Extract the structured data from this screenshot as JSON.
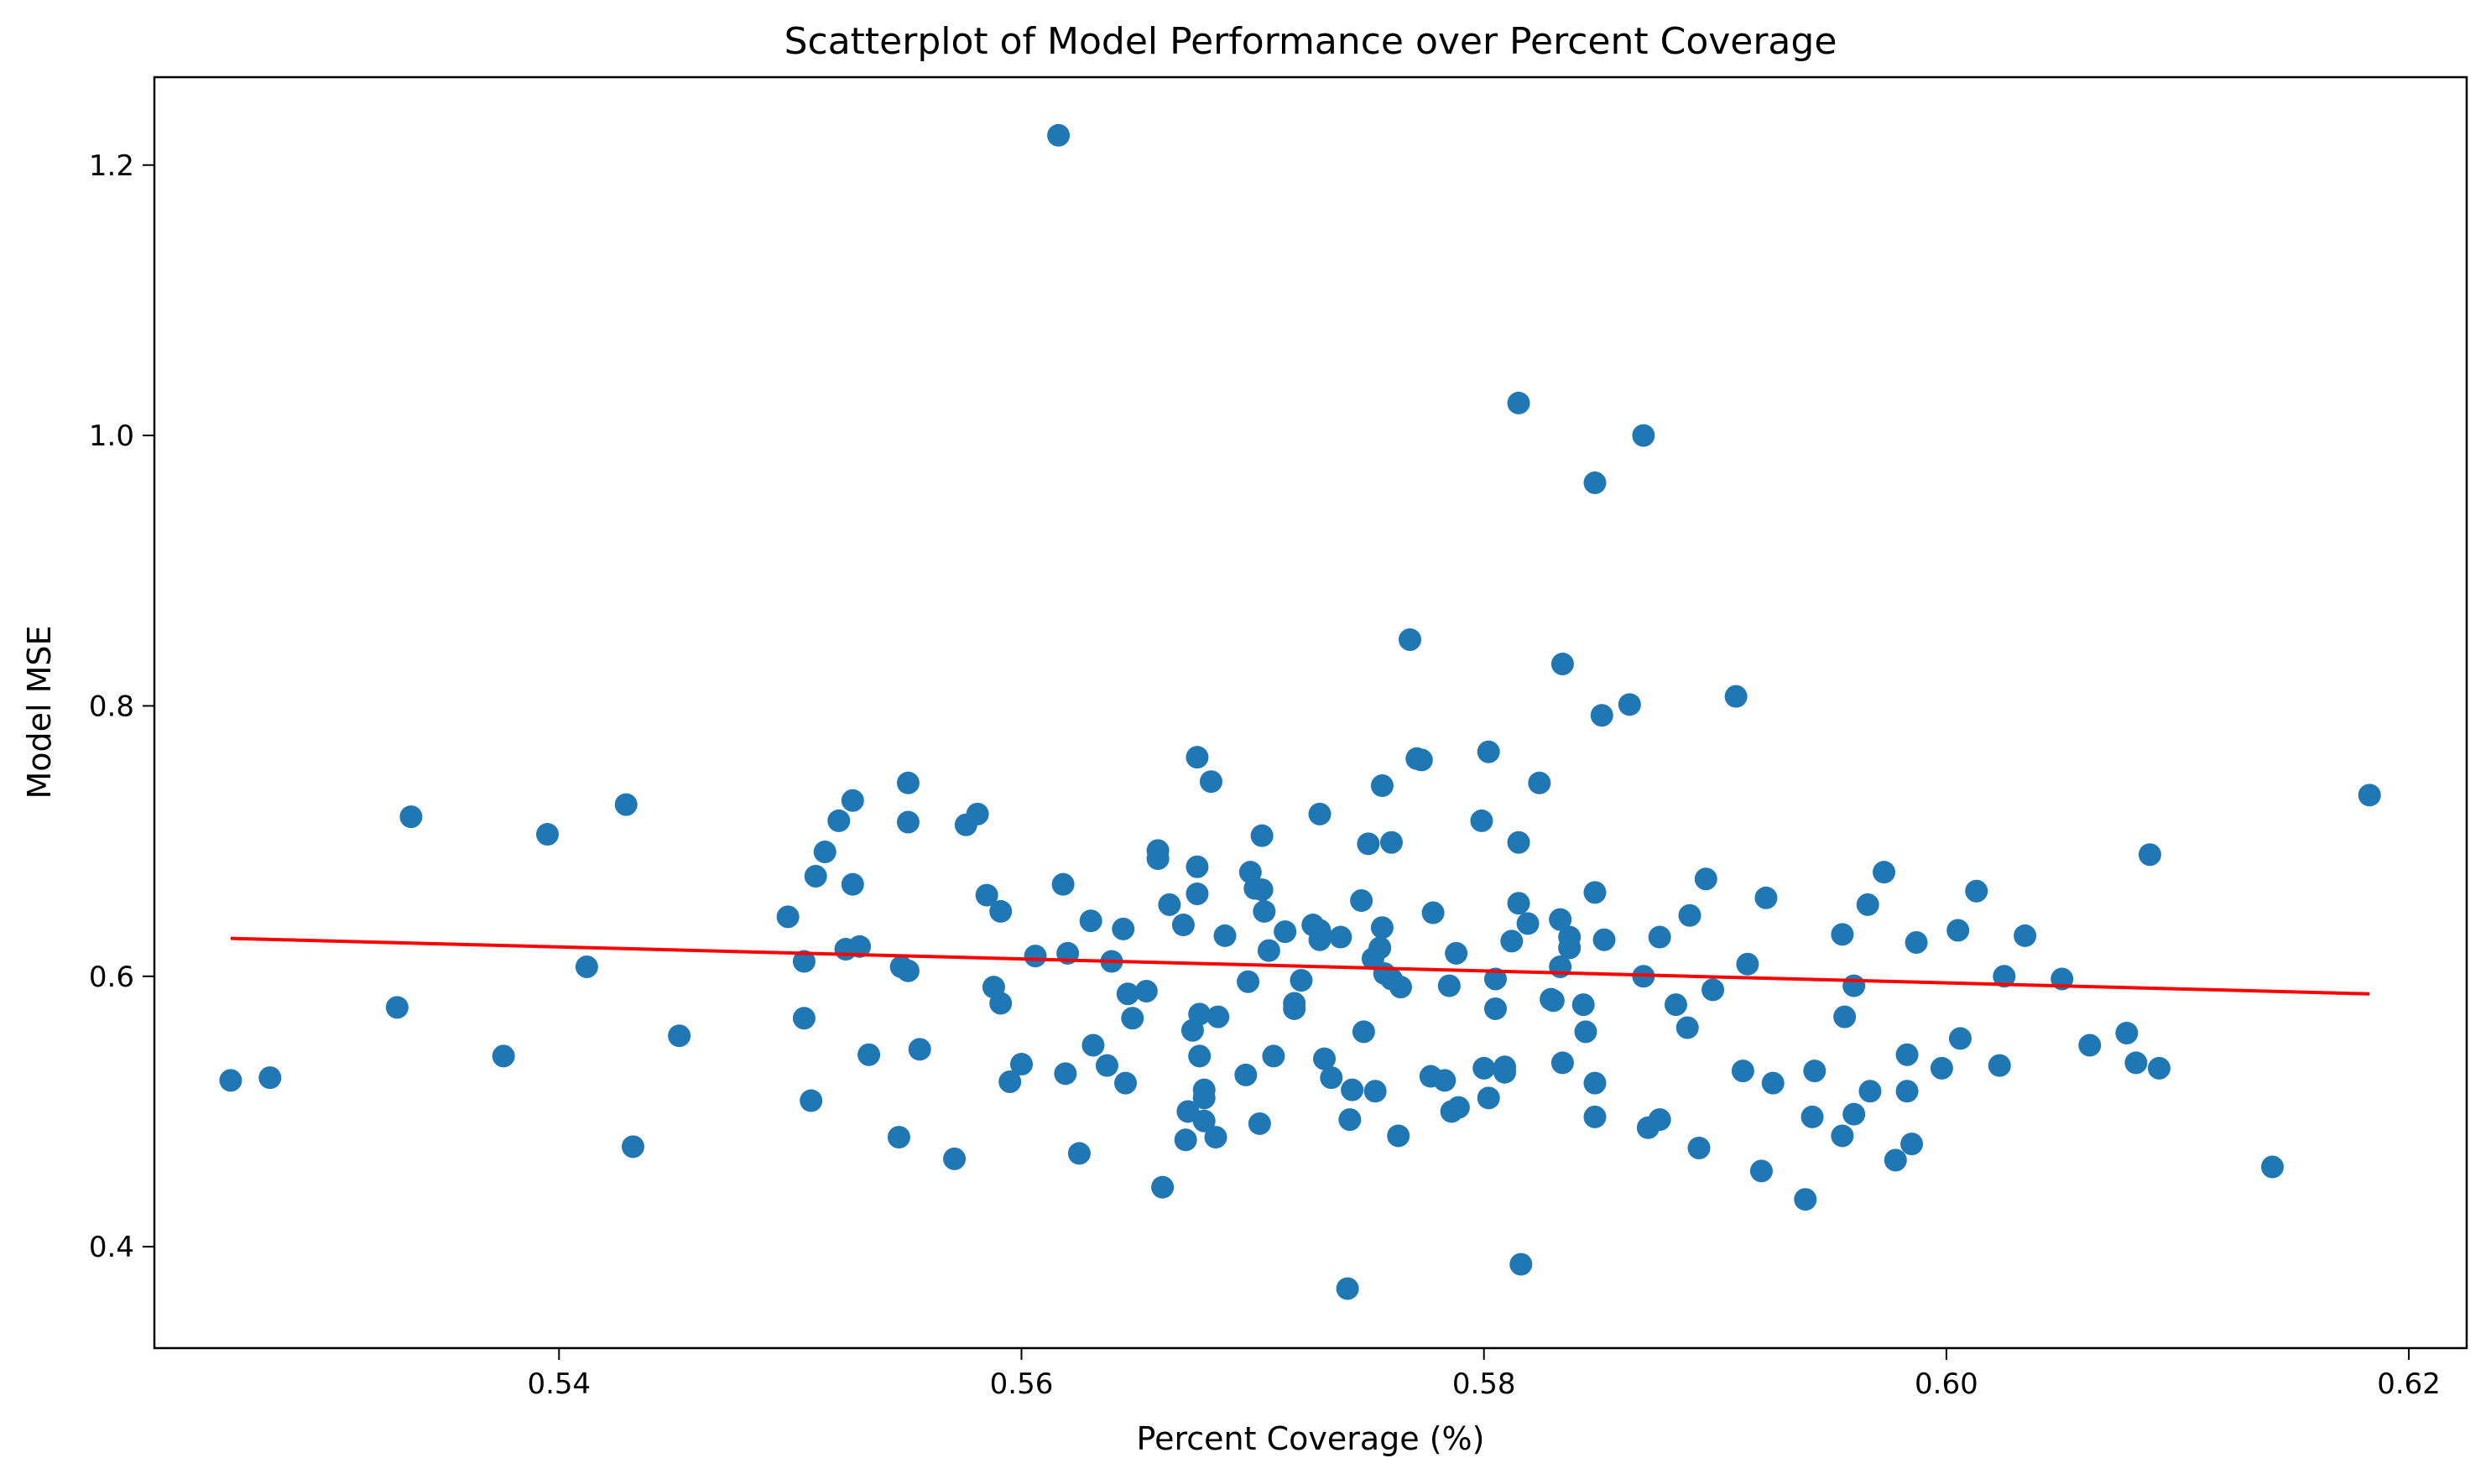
{
  "chart_data": {
    "type": "scatter",
    "title": "Scatterplot of Model Performance over Percent Coverage",
    "xlabel": "Percent Coverage (%)",
    "ylabel": "Model MSE",
    "xlim": [
      0.5225,
      0.6225
    ],
    "ylim": [
      0.325,
      1.265
    ],
    "xticks": [
      0.54,
      0.56,
      0.58,
      0.6,
      0.62
    ],
    "xtick_labels": [
      "0.54",
      "0.56",
      "0.58",
      "0.60",
      "0.62"
    ],
    "yticks": [
      0.4,
      0.6,
      0.8,
      1.0,
      1.2
    ],
    "ytick_labels": [
      "0.4",
      "0.6",
      "0.8",
      "1.0",
      "1.2"
    ],
    "grid": false,
    "colors": {
      "points": "#1f77b4",
      "trend": "#ff0000"
    },
    "trend_line": {
      "x": [
        0.5258,
        0.6183
      ],
      "y": [
        0.628,
        0.587
      ]
    },
    "points": [
      [
        0.5258,
        0.523
      ],
      [
        0.5275,
        0.525
      ],
      [
        0.533,
        0.577
      ],
      [
        0.5336,
        0.718
      ],
      [
        0.5376,
        0.541
      ],
      [
        0.5395,
        0.705
      ],
      [
        0.5412,
        0.607
      ],
      [
        0.5429,
        0.727
      ],
      [
        0.5432,
        0.474
      ],
      [
        0.5452,
        0.556
      ],
      [
        0.5499,
        0.644
      ],
      [
        0.5506,
        0.611
      ],
      [
        0.5506,
        0.569
      ],
      [
        0.5509,
        0.508
      ],
      [
        0.5511,
        0.674
      ],
      [
        0.5515,
        0.692
      ],
      [
        0.5521,
        0.715
      ],
      [
        0.5524,
        0.62
      ],
      [
        0.5527,
        0.73
      ],
      [
        0.5527,
        0.668
      ],
      [
        0.553,
        0.622
      ],
      [
        0.5534,
        0.542
      ],
      [
        0.5547,
        0.481
      ],
      [
        0.5548,
        0.607
      ],
      [
        0.5551,
        0.743
      ],
      [
        0.5551,
        0.714
      ],
      [
        0.5551,
        0.604
      ],
      [
        0.5556,
        0.546
      ],
      [
        0.5571,
        0.465
      ],
      [
        0.5576,
        0.712
      ],
      [
        0.5581,
        0.72
      ],
      [
        0.5585,
        0.66
      ],
      [
        0.5588,
        0.592
      ],
      [
        0.5591,
        0.648
      ],
      [
        0.5591,
        0.58
      ],
      [
        0.5595,
        0.522
      ],
      [
        0.56,
        0.535
      ],
      [
        0.5606,
        0.615
      ],
      [
        0.5616,
        1.222
      ],
      [
        0.5618,
        0.668
      ],
      [
        0.5619,
        0.528
      ],
      [
        0.562,
        0.617
      ],
      [
        0.5625,
        0.469
      ],
      [
        0.563,
        0.641
      ],
      [
        0.5631,
        0.549
      ],
      [
        0.5637,
        0.534
      ],
      [
        0.5639,
        0.611
      ],
      [
        0.5644,
        0.635
      ],
      [
        0.5645,
        0.521
      ],
      [
        0.5646,
        0.587
      ],
      [
        0.5648,
        0.569
      ],
      [
        0.5654,
        0.589
      ],
      [
        0.5659,
        0.693
      ],
      [
        0.5659,
        0.687
      ],
      [
        0.5661,
        0.444
      ],
      [
        0.5664,
        0.653
      ],
      [
        0.567,
        0.638
      ],
      [
        0.5671,
        0.479
      ],
      [
        0.5672,
        0.5
      ],
      [
        0.5674,
        0.56
      ],
      [
        0.5676,
        0.762
      ],
      [
        0.5676,
        0.681
      ],
      [
        0.5676,
        0.661
      ],
      [
        0.5677,
        0.572
      ],
      [
        0.5677,
        0.541
      ],
      [
        0.5679,
        0.516
      ],
      [
        0.5679,
        0.51
      ],
      [
        0.5679,
        0.493
      ],
      [
        0.5682,
        0.744
      ],
      [
        0.5684,
        0.481
      ],
      [
        0.5685,
        0.57
      ],
      [
        0.5688,
        0.63
      ],
      [
        0.5697,
        0.527
      ],
      [
        0.5698,
        0.596
      ],
      [
        0.5699,
        0.677
      ],
      [
        0.5701,
        0.665
      ],
      [
        0.5703,
        0.491
      ],
      [
        0.5704,
        0.704
      ],
      [
        0.5704,
        0.664
      ],
      [
        0.5705,
        0.648
      ],
      [
        0.5707,
        0.619
      ],
      [
        0.5709,
        0.541
      ],
      [
        0.5714,
        0.633
      ],
      [
        0.5718,
        0.58
      ],
      [
        0.5718,
        0.576
      ],
      [
        0.5721,
        0.597
      ],
      [
        0.5726,
        0.638
      ],
      [
        0.5729,
        0.72
      ],
      [
        0.5729,
        0.634
      ],
      [
        0.5729,
        0.627
      ],
      [
        0.5731,
        0.539
      ],
      [
        0.5734,
        0.525
      ],
      [
        0.5738,
        0.629
      ],
      [
        0.5741,
        0.369
      ],
      [
        0.5742,
        0.494
      ],
      [
        0.5743,
        0.516
      ],
      [
        0.5747,
        0.656
      ],
      [
        0.5748,
        0.559
      ],
      [
        0.575,
        0.698
      ],
      [
        0.5752,
        0.613
      ],
      [
        0.5753,
        0.515
      ],
      [
        0.5755,
        0.621
      ],
      [
        0.5756,
        0.741
      ],
      [
        0.5756,
        0.636
      ],
      [
        0.5757,
        0.602
      ],
      [
        0.576,
        0.699
      ],
      [
        0.576,
        0.598
      ],
      [
        0.5763,
        0.482
      ],
      [
        0.5764,
        0.592
      ],
      [
        0.5768,
        0.849
      ],
      [
        0.5771,
        0.761
      ],
      [
        0.5773,
        0.76
      ],
      [
        0.5777,
        0.526
      ],
      [
        0.5778,
        0.647
      ],
      [
        0.5783,
        0.523
      ],
      [
        0.5785,
        0.593
      ],
      [
        0.5786,
        0.5
      ],
      [
        0.5788,
        0.617
      ],
      [
        0.5789,
        0.503
      ],
      [
        0.5799,
        0.715
      ],
      [
        0.58,
        0.532
      ],
      [
        0.5802,
        0.766
      ],
      [
        0.5802,
        0.51
      ],
      [
        0.5805,
        0.598
      ],
      [
        0.5805,
        0.576
      ],
      [
        0.5809,
        0.533
      ],
      [
        0.5809,
        0.529
      ],
      [
        0.5812,
        0.626
      ],
      [
        0.5815,
        1.024
      ],
      [
        0.5815,
        0.699
      ],
      [
        0.5815,
        0.654
      ],
      [
        0.5816,
        0.387
      ],
      [
        0.5819,
        0.639
      ],
      [
        0.5824,
        0.743
      ],
      [
        0.5829,
        0.583
      ],
      [
        0.583,
        0.582
      ],
      [
        0.5833,
        0.642
      ],
      [
        0.5833,
        0.607
      ],
      [
        0.5834,
        0.831
      ],
      [
        0.5834,
        0.536
      ],
      [
        0.5837,
        0.629
      ],
      [
        0.5837,
        0.621
      ],
      [
        0.5843,
        0.579
      ],
      [
        0.5844,
        0.559
      ],
      [
        0.5848,
        0.965
      ],
      [
        0.5848,
        0.662
      ],
      [
        0.5848,
        0.521
      ],
      [
        0.5848,
        0.496
      ],
      [
        0.5851,
        0.793
      ],
      [
        0.5852,
        0.627
      ],
      [
        0.5863,
        0.801
      ],
      [
        0.5869,
        1.0
      ],
      [
        0.5869,
        0.6
      ],
      [
        0.5871,
        0.488
      ],
      [
        0.5876,
        0.629
      ],
      [
        0.5876,
        0.494
      ],
      [
        0.5883,
        0.579
      ],
      [
        0.5888,
        0.562
      ],
      [
        0.5889,
        0.645
      ],
      [
        0.5893,
        0.473
      ],
      [
        0.5896,
        0.672
      ],
      [
        0.5899,
        0.59
      ],
      [
        0.5909,
        0.807
      ],
      [
        0.5912,
        0.53
      ],
      [
        0.5914,
        0.609
      ],
      [
        0.592,
        0.456
      ],
      [
        0.5922,
        0.658
      ],
      [
        0.5925,
        0.521
      ],
      [
        0.5939,
        0.435
      ],
      [
        0.5942,
        0.496
      ],
      [
        0.5943,
        0.53
      ],
      [
        0.5955,
        0.631
      ],
      [
        0.5955,
        0.482
      ],
      [
        0.5956,
        0.57
      ],
      [
        0.596,
        0.593
      ],
      [
        0.596,
        0.498
      ],
      [
        0.5966,
        0.653
      ],
      [
        0.5967,
        0.515
      ],
      [
        0.5973,
        0.677
      ],
      [
        0.5978,
        0.464
      ],
      [
        0.5983,
        0.542
      ],
      [
        0.5983,
        0.515
      ],
      [
        0.5985,
        0.476
      ],
      [
        0.5987,
        0.625
      ],
      [
        0.5998,
        0.532
      ],
      [
        0.6005,
        0.634
      ],
      [
        0.6006,
        0.554
      ],
      [
        0.6013,
        0.663
      ],
      [
        0.6023,
        0.534
      ],
      [
        0.6025,
        0.6
      ],
      [
        0.6034,
        0.63
      ],
      [
        0.605,
        0.598
      ],
      [
        0.6062,
        0.549
      ],
      [
        0.6078,
        0.558
      ],
      [
        0.6082,
        0.536
      ],
      [
        0.6088,
        0.69
      ],
      [
        0.6092,
        0.532
      ],
      [
        0.6141,
        0.459
      ],
      [
        0.6183,
        0.734
      ]
    ]
  }
}
